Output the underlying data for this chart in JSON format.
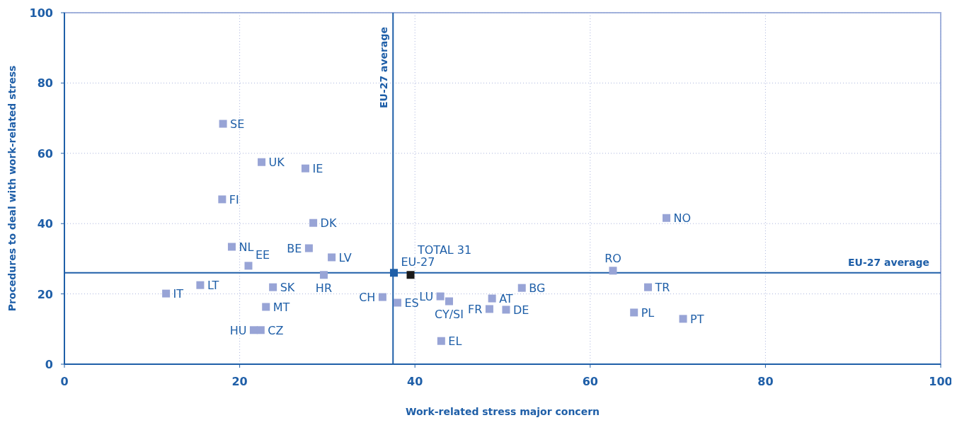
{
  "chart_data": {
    "type": "scatter",
    "xlabel": "Work-related stress major concern",
    "ylabel": "Procedures to deal with work-related stress",
    "xlim": [
      0,
      100
    ],
    "xticks": [
      0,
      20,
      40,
      60,
      80,
      100
    ],
    "ylim": [
      0,
      100
    ],
    "yticks": [
      0,
      20,
      40,
      60,
      80,
      100
    ],
    "grid": true,
    "marker": "square",
    "ref_lines": [
      {
        "axis": "x",
        "value": 37.5,
        "label": "EU-27 average",
        "color": "#1f5fa8"
      },
      {
        "axis": "y",
        "value": 26,
        "label": "EU-27 average",
        "color": "#1f5fa8"
      }
    ],
    "series": [
      {
        "name": "SE",
        "color": "#98a4d6",
        "x": [
          18.1
        ],
        "values": [
          68.4
        ]
      },
      {
        "name": "UK",
        "color": "#98a4d6",
        "x": [
          22.5
        ],
        "values": [
          57.5
        ]
      },
      {
        "name": "IE",
        "color": "#98a4d6",
        "x": [
          27.5
        ],
        "values": [
          55.7
        ]
      },
      {
        "name": "FI",
        "color": "#98a4d6",
        "x": [
          18.0
        ],
        "values": [
          46.9
        ]
      },
      {
        "name": "DK",
        "color": "#98a4d6",
        "x": [
          28.4
        ],
        "values": [
          40.2
        ]
      },
      {
        "name": "NO",
        "color": "#98a4d6",
        "x": [
          68.7
        ],
        "values": [
          41.6
        ]
      },
      {
        "name": "NL",
        "color": "#98a4d6",
        "x": [
          19.1
        ],
        "values": [
          33.4
        ]
      },
      {
        "name": "BE",
        "color": "#98a4d6",
        "x": [
          27.9
        ],
        "values": [
          33.0
        ]
      },
      {
        "name": "LV",
        "color": "#98a4d6",
        "x": [
          30.5
        ],
        "values": [
          30.4
        ]
      },
      {
        "name": "EE",
        "color": "#98a4d6",
        "x": [
          21.0
        ],
        "values": [
          28.0
        ]
      },
      {
        "name": "RO",
        "color": "#98a4d6",
        "x": [
          62.6
        ],
        "values": [
          26.6
        ]
      },
      {
        "name": "EU-27",
        "color": "#1f5fa8",
        "x": [
          37.6
        ],
        "values": [
          26.0
        ]
      },
      {
        "name": "TOTAL 31",
        "color": "#1a1a1a",
        "x": [
          39.5
        ],
        "values": [
          25.4
        ]
      },
      {
        "name": "HR",
        "color": "#98a4d6",
        "x": [
          29.6
        ],
        "values": [
          25.4
        ]
      },
      {
        "name": "LT",
        "color": "#98a4d6",
        "x": [
          15.5
        ],
        "values": [
          22.5
        ]
      },
      {
        "name": "SK",
        "color": "#98a4d6",
        "x": [
          23.8
        ],
        "values": [
          21.9
        ]
      },
      {
        "name": "TR",
        "color": "#98a4d6",
        "x": [
          66.6
        ],
        "values": [
          21.9
        ]
      },
      {
        "name": "BG",
        "color": "#98a4d6",
        "x": [
          52.2
        ],
        "values": [
          21.7
        ]
      },
      {
        "name": "IT",
        "color": "#98a4d6",
        "x": [
          11.6
        ],
        "values": [
          20.1
        ]
      },
      {
        "name": "LU",
        "color": "#98a4d6",
        "x": [
          42.9
        ],
        "values": [
          19.3
        ]
      },
      {
        "name": "CH",
        "color": "#98a4d6",
        "x": [
          36.3
        ],
        "values": [
          19.1
        ]
      },
      {
        "name": "AT",
        "color": "#98a4d6",
        "x": [
          48.8
        ],
        "values": [
          18.7
        ]
      },
      {
        "name": "CY/SI",
        "color": "#98a4d6",
        "x": [
          43.9
        ],
        "values": [
          17.9
        ]
      },
      {
        "name": "ES",
        "color": "#98a4d6",
        "x": [
          38.0
        ],
        "values": [
          17.5
        ]
      },
      {
        "name": "MT",
        "color": "#98a4d6",
        "x": [
          23.0
        ],
        "values": [
          16.3
        ]
      },
      {
        "name": "FR",
        "color": "#98a4d6",
        "x": [
          48.5
        ],
        "values": [
          15.7
        ]
      },
      {
        "name": "DE",
        "color": "#98a4d6",
        "x": [
          50.4
        ],
        "values": [
          15.5
        ]
      },
      {
        "name": "PL",
        "color": "#98a4d6",
        "x": [
          65.0
        ],
        "values": [
          14.7
        ]
      },
      {
        "name": "PT",
        "color": "#98a4d6",
        "x": [
          70.6
        ],
        "values": [
          12.9
        ]
      },
      {
        "name": "HU",
        "color": "#98a4d6",
        "x": [
          21.6
        ],
        "values": [
          9.7
        ]
      },
      {
        "name": "CZ",
        "color": "#98a4d6",
        "x": [
          22.4
        ],
        "values": [
          9.7
        ]
      },
      {
        "name": "EL",
        "color": "#98a4d6",
        "x": [
          43.0
        ],
        "values": [
          6.6
        ]
      }
    ]
  }
}
